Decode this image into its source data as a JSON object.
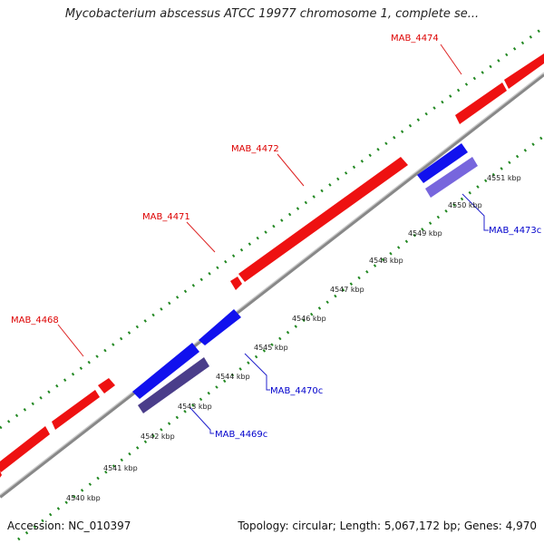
{
  "title": "Mycobacterium abscessus ATCC 19977 chromosome 1, complete se...",
  "footer": {
    "accession": "Accession: NC_010397",
    "summary": "Topology: circular; Length: 5,067,172 bp; Genes: 4,970"
  },
  "colors": {
    "forward_gene": "#ee1111",
    "reverse_gene": "#1111ee",
    "reverse_gene_pale": "#7766dd",
    "reverse_gene_dark": "#4a3d8a",
    "backbone": "#999999",
    "tick": "#228822",
    "forward_label": "#dd0000",
    "reverse_label": "#0000cc"
  },
  "gene_labels": [
    {
      "id": "MAB_4474",
      "text": "MAB_4474",
      "strand": "forward"
    },
    {
      "id": "MAB_4472",
      "text": "MAB_4472",
      "strand": "forward"
    },
    {
      "id": "MAB_4471",
      "text": "MAB_4471",
      "strand": "forward"
    },
    {
      "id": "MAB_4468",
      "text": "MAB_4468",
      "strand": "forward"
    },
    {
      "id": "MAB_4473c",
      "text": "MAB_4473c",
      "strand": "reverse"
    },
    {
      "id": "MAB_4470c",
      "text": "MAB_4470c",
      "strand": "reverse"
    },
    {
      "id": "MAB_4469c",
      "text": "MAB_4469c",
      "strand": "reverse"
    }
  ],
  "kbp_ticks": [
    "4540 kbp",
    "4541 kbp",
    "4542 kbp",
    "4543 kbp",
    "4544 kbp",
    "4545 kbp",
    "4546 kbp",
    "4547 kbp",
    "4548 kbp",
    "4549 kbp",
    "4550 kbp",
    "4551 kbp"
  ]
}
